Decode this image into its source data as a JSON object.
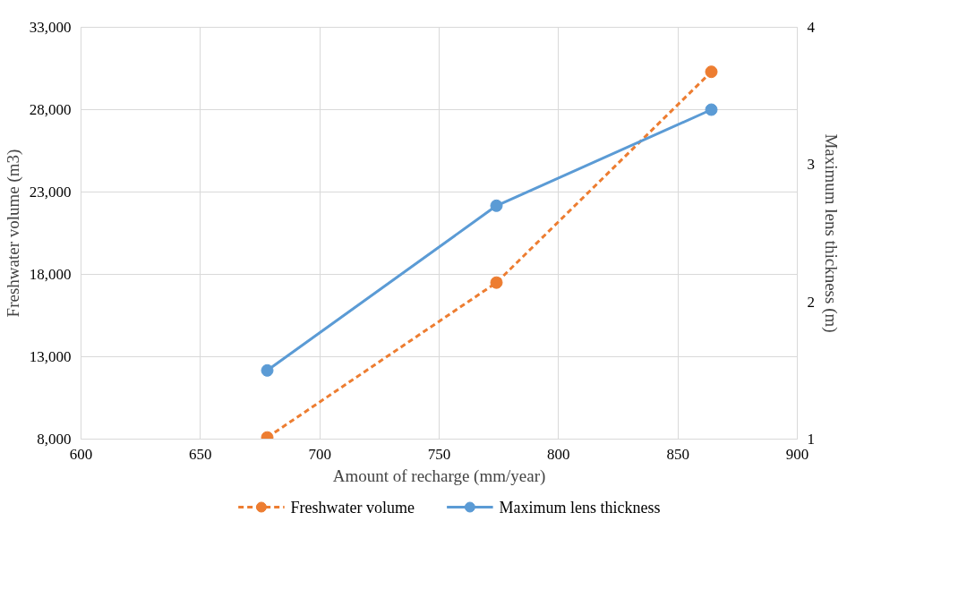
{
  "chart_data": {
    "type": "line",
    "xlabel": "Amount of recharge (mm/year)",
    "ylabel": "Freshwater volume (m3)",
    "y2label": "Maximum lens thickness (m)",
    "x": [
      678,
      774,
      864
    ],
    "series": [
      {
        "name": "Freshwater volume",
        "color": "#ed7d31",
        "values": [
          8100,
          17500,
          30300
        ],
        "line_style": "dashed"
      },
      {
        "name": "Maximum lens thickness",
        "color": "#5b9bd5",
        "values": [
          1.5,
          2.7,
          3.4
        ],
        "axis": "y2",
        "line_style": "solid"
      }
    ],
    "xlim": [
      600,
      900
    ],
    "xticks": [
      600,
      650,
      700,
      750,
      800,
      850,
      900
    ],
    "ylim": [
      8000,
      33000
    ],
    "yticks": [
      {
        "value": 8000,
        "label": "8,000"
      },
      {
        "value": 13000,
        "label": "13,000"
      },
      {
        "value": 18000,
        "label": "18,000"
      },
      {
        "value": 23000,
        "label": "23,000"
      },
      {
        "value": 28000,
        "label": "28,000"
      },
      {
        "value": 33000,
        "label": "33,000"
      }
    ],
    "y2lim": [
      1,
      4
    ],
    "y2ticks": [
      1,
      2,
      3,
      4
    ],
    "grid": true,
    "legend": "bottom",
    "marker": "circle"
  }
}
